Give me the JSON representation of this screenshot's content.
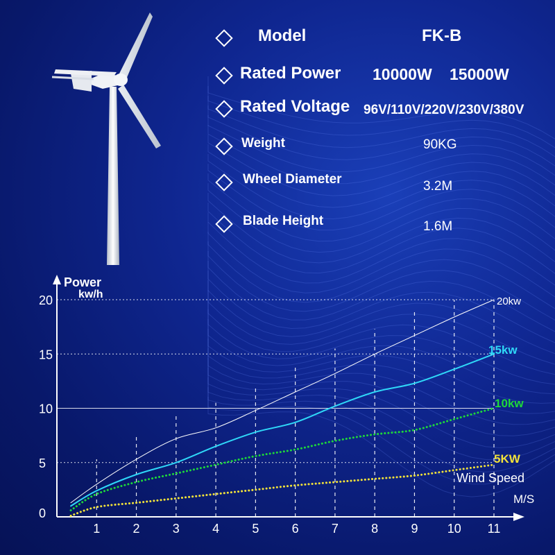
{
  "specs": {
    "model": {
      "label": "Model",
      "value": "FK-B"
    },
    "rated_power": {
      "label": "Rated Power",
      "values": [
        "10000W",
        "15000W"
      ]
    },
    "rated_voltage": {
      "label": "Rated Voltage",
      "value": "96V/110V/220V/230V/380V"
    },
    "weight": {
      "label": "Weight",
      "value": "90KG"
    },
    "wheel_diameter": {
      "label": "Wheel Diameter",
      "value": "3.2M"
    },
    "blade_height": {
      "label": "Blade Height",
      "value": "1.6M"
    }
  },
  "icons": {
    "bullet": "diamond-icon",
    "turbine": "wind-turbine-icon"
  },
  "chart_data": {
    "type": "line",
    "ylabel": "Power",
    "yunit": "kw/h",
    "xlabel": "M/S",
    "xlabel_secondary": "Wind Speed",
    "x_ticks": [
      "1",
      "2",
      "3",
      "4",
      "5",
      "6",
      "7",
      "8",
      "9",
      "10",
      "11"
    ],
    "y_ticks": [
      "0",
      "5",
      "10",
      "15",
      "20"
    ],
    "xlim": [
      0,
      11.6
    ],
    "ylim": [
      0,
      20
    ],
    "grid": true,
    "series": [
      {
        "name": "20kw",
        "color": "#ffffff",
        "style": "solid",
        "width": 1,
        "x": [
          0.0,
          1,
          2,
          3,
          4,
          5,
          6,
          7,
          8,
          9,
          10,
          11
        ],
        "y": [
          1.3,
          3.0,
          5.3,
          7.2,
          8.2,
          9.8,
          11.5,
          13.2,
          15.0,
          16.7,
          18.4,
          20.0
        ]
      },
      {
        "name": "15kw",
        "color": "#2fd8f8",
        "style": "solid",
        "width": 2,
        "x": [
          0.0,
          1,
          2,
          3,
          4,
          5,
          6,
          7,
          8,
          9,
          10,
          11
        ],
        "y": [
          1.0,
          2.4,
          3.9,
          5.0,
          6.5,
          7.8,
          8.7,
          10.2,
          11.5,
          12.3,
          13.6,
          15.0
        ]
      },
      {
        "name": "10kw",
        "color": "#1ed83a",
        "style": "dotted",
        "width": 3,
        "x": [
          0.0,
          1,
          2,
          3,
          4,
          5,
          6,
          7,
          8,
          9,
          10,
          11
        ],
        "y": [
          0.6,
          2.1,
          3.2,
          4.0,
          4.8,
          5.6,
          6.2,
          7.0,
          7.6,
          8.0,
          9.0,
          10.0
        ]
      },
      {
        "name": "5KW",
        "color": "#f2e23a",
        "style": "dotted",
        "width": 3,
        "x": [
          0.0,
          1,
          2,
          3,
          4,
          5,
          6,
          7,
          8,
          9,
          10,
          11
        ],
        "y": [
          0.1,
          0.9,
          1.3,
          1.7,
          2.1,
          2.5,
          2.9,
          3.2,
          3.5,
          3.8,
          4.3,
          4.8
        ]
      }
    ],
    "label_colors": {
      "20kw": "#ffffff",
      "15kw": "#2fd8f8",
      "10kw": "#1ed83a",
      "5KW": "#f2e23a"
    }
  }
}
